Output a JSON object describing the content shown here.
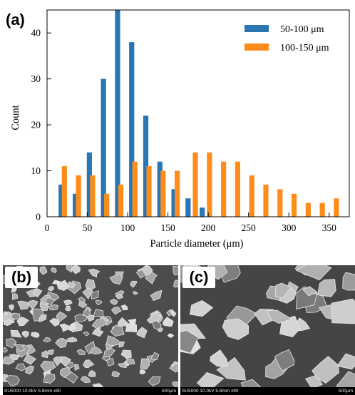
{
  "chart_data": {
    "type": "bar",
    "panel_label": "(a)",
    "xlabel": "Particle diameter (μm)",
    "ylabel": "Count",
    "xlim": [
      0,
      375
    ],
    "ylim": [
      0,
      45
    ],
    "x_ticks": [
      0,
      50,
      100,
      150,
      200,
      250,
      300,
      350
    ],
    "y_ticks": [
      0,
      10,
      20,
      30,
      40
    ],
    "legend_position": "top-right",
    "series": [
      {
        "name": "50-100 μm",
        "color": "#2a75b3",
        "x": [
          17.5,
          35,
          52.5,
          70,
          87.5,
          105,
          122.5,
          140,
          157.5,
          175,
          192.5
        ],
        "values": [
          7,
          5,
          14,
          30,
          45,
          38,
          22,
          12,
          6,
          4,
          2
        ]
      },
      {
        "name": "100-150 μm",
        "color": "#ff8c1a",
        "x": [
          21.5,
          39,
          56.5,
          74,
          91.5,
          109,
          126.5,
          144,
          161.5,
          184,
          201.5,
          219,
          236.5,
          254,
          271.5,
          289,
          306.5,
          324,
          341.5,
          359
        ],
        "values": [
          11,
          9,
          9,
          5,
          7,
          12,
          11,
          10,
          10,
          14,
          14,
          12,
          12,
          9,
          7,
          6,
          5,
          3,
          3,
          4
        ]
      }
    ]
  },
  "images": {
    "b": {
      "label": "(b)",
      "info": "SU5000 10.0kV 5.8mm x90",
      "scale": "500μm"
    },
    "c": {
      "label": "(c)",
      "info": "SU5000 10.0kV 5.8mm x90",
      "scale": "500μm"
    }
  }
}
